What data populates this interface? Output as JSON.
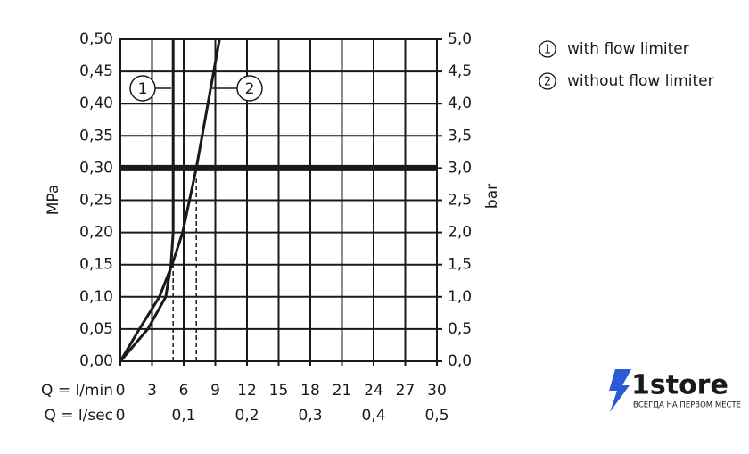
{
  "chart_data": {
    "type": "line",
    "x_label": "Q = l/min",
    "x2_label": "Q = l/sec",
    "y_label": "MPa",
    "y2_label": "bar",
    "xlim": [
      0,
      30
    ],
    "xticks": [
      0,
      3,
      6,
      9,
      12,
      15,
      18,
      21,
      24,
      27,
      30
    ],
    "x2lim": [
      0,
      0.5
    ],
    "x2ticks": [
      0,
      {
        "value": 0.1,
        "label": "0,1"
      },
      {
        "value": 0.2,
        "label": "0,2"
      },
      {
        "value": 0.3,
        "label": "0,3"
      },
      {
        "value": 0.4,
        "label": "0,4"
      },
      {
        "value": 0.5,
        "label": "0,5"
      }
    ],
    "ylim": [
      0,
      0.5
    ],
    "yticks": [
      {
        "value": 0,
        "label": "0,00"
      },
      {
        "value": 0.05,
        "label": "0,05"
      },
      {
        "value": 0.1,
        "label": "0,10"
      },
      {
        "value": 0.15,
        "label": "0,15"
      },
      {
        "value": 0.2,
        "label": "0,20"
      },
      {
        "value": 0.25,
        "label": "0,25"
      },
      {
        "value": 0.3,
        "label": "0,30"
      },
      {
        "value": 0.35,
        "label": "0,35"
      },
      {
        "value": 0.4,
        "label": "0,40"
      },
      {
        "value": 0.45,
        "label": "0,45"
      },
      {
        "value": 0.5,
        "label": "0,50"
      }
    ],
    "y2lim": [
      0,
      5
    ],
    "y2ticks": [
      {
        "value": 0,
        "label": "0,0"
      },
      {
        "value": 0.5,
        "label": "0,5"
      },
      {
        "value": 1,
        "label": "1,0"
      },
      {
        "value": 1.5,
        "label": "1,5"
      },
      {
        "value": 2,
        "label": "2,0"
      },
      {
        "value": 2.5,
        "label": "2,5"
      },
      {
        "value": 3,
        "label": "3,0"
      },
      {
        "value": 3.5,
        "label": "3,5"
      },
      {
        "value": 4,
        "label": "4,0"
      },
      {
        "value": 4.5,
        "label": "4,5"
      },
      {
        "value": 5,
        "label": "5,0"
      }
    ],
    "grid": true,
    "reference_line": 0.3,
    "drop_lines": [
      5,
      7.2
    ],
    "series": [
      {
        "label": "1",
        "name": "with flow limiter",
        "color": "#1a1a1a",
        "x": [
          0,
          2.6,
          4.3,
          4.8,
          5,
          5
        ],
        "values": [
          0,
          0.05,
          0.1,
          0.15,
          0.2,
          0.5
        ]
      },
      {
        "label": "2",
        "name": "without flow limiter",
        "color": "#1a1a1a",
        "x": [
          0,
          1.8,
          3.7,
          4.9,
          5.9,
          7.2,
          8.3,
          9.4
        ],
        "values": [
          0,
          0.05,
          0.1,
          0.15,
          0.2,
          0.3,
          0.4,
          0.5
        ]
      }
    ]
  },
  "watermark": {
    "brand": "1store",
    "slogan": "ВСЕГДА НА ПЕРВОМ МЕСТЕ"
  }
}
